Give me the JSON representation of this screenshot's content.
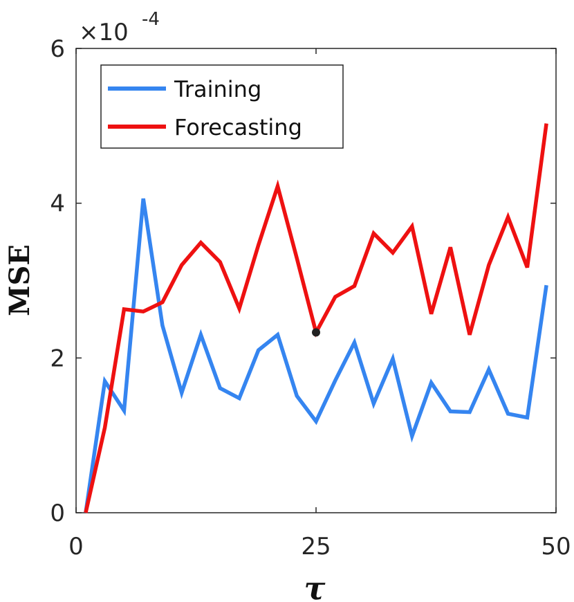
{
  "chart_data": {
    "type": "line",
    "title": "",
    "xlabel": "τ",
    "ylabel": "MSE",
    "xlim": [
      0,
      50
    ],
    "ylim": [
      0,
      6
    ],
    "y_exponent_label": {
      "base": "×10",
      "exp": "-4"
    },
    "xticks": [
      0,
      25,
      50
    ],
    "xtick_labels": [
      "0",
      "25",
      "50"
    ],
    "yticks": [
      0,
      2,
      4,
      6
    ],
    "ytick_labels": [
      "0",
      "2",
      "4",
      "6"
    ],
    "grid": false,
    "legend_position": "top-left",
    "series": [
      {
        "name": "Training",
        "color": "#3585f0",
        "x": [
          1,
          3,
          5,
          7,
          9,
          11,
          13,
          15,
          17,
          19,
          21,
          23,
          25,
          27,
          29,
          31,
          33,
          35,
          37,
          39,
          41,
          43,
          45,
          47,
          49
        ],
        "values": [
          0.0,
          1.7,
          1.32,
          4.06,
          2.42,
          1.55,
          2.3,
          1.61,
          1.48,
          2.1,
          2.3,
          1.51,
          1.18,
          1.71,
          2.2,
          1.41,
          1.99,
          0.99,
          1.68,
          1.31,
          1.3,
          1.85,
          1.28,
          1.23,
          2.94
        ]
      },
      {
        "name": "Forecasting",
        "color": "#ee1111",
        "x": [
          1,
          3,
          5,
          7,
          9,
          11,
          13,
          15,
          17,
          19,
          21,
          23,
          25,
          27,
          29,
          31,
          33,
          35,
          37,
          39,
          41,
          43,
          45,
          47,
          49
        ],
        "values": [
          0.0,
          1.1,
          2.63,
          2.6,
          2.72,
          3.2,
          3.49,
          3.24,
          2.64,
          3.46,
          4.22,
          3.29,
          2.33,
          2.79,
          2.93,
          3.61,
          3.36,
          3.7,
          2.57,
          3.43,
          2.3,
          3.2,
          3.82,
          3.17,
          5.03
        ]
      }
    ],
    "annotations": [
      {
        "type": "marker",
        "x": 25,
        "y": 2.33,
        "color": "#222222"
      }
    ]
  }
}
